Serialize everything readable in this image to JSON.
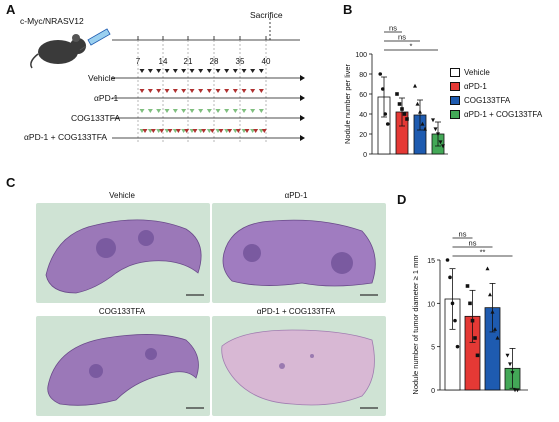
{
  "panels": {
    "A": {
      "letter": "A",
      "model_label": "c-Myc/NRASV12",
      "sacrifice_label": "Sacrifice",
      "days": [
        "7",
        "14",
        "21",
        "28",
        "35",
        "40"
      ],
      "groups": [
        "Vehicle",
        "αPD-1",
        "COG133TFA",
        "αPD-1 + COG133TFA"
      ],
      "marker_colors": {
        "vehicle": "#222222",
        "apd1": "#b03030",
        "cog": "#7fbf7f"
      }
    },
    "B": {
      "letter": "B"
    },
    "C": {
      "letter": "C",
      "titles": [
        "Vehicle",
        "αPD-1",
        "COG133TFA",
        "αPD-1 + COG133TFA"
      ]
    },
    "D": {
      "letter": "D"
    }
  },
  "legend": [
    {
      "label": "Vehicle",
      "color": "#ffffff"
    },
    {
      "label": "αPD-1",
      "color": "#e53935"
    },
    {
      "label": "COG133TFA",
      "color": "#1e5bb0"
    },
    {
      "label": "αPD-1 + COG133TFA",
      "color": "#43a857"
    }
  ],
  "chart_data": [
    {
      "type": "bar",
      "panel": "B",
      "categories": [
        "Vehicle",
        "αPD-1",
        "COG133TFA",
        "αPD-1 + COG133TFA"
      ],
      "values": [
        57,
        42,
        39,
        20
      ],
      "errors": [
        20,
        14,
        15,
        12
      ],
      "colors": [
        "#ffffff",
        "#e53935",
        "#1e5bb0",
        "#43a857"
      ],
      "points": [
        [
          80,
          65,
          40,
          30
        ],
        [
          60,
          50,
          45,
          40,
          35
        ],
        [
          68,
          50,
          42,
          30,
          25
        ],
        [
          34,
          25,
          20,
          12,
          8
        ]
      ],
      "ylabel": "Nodule number per liver",
      "ylim": [
        0,
        100
      ],
      "yticks": [
        0,
        20,
        40,
        60,
        80,
        100
      ],
      "brackets": [
        {
          "from": 0,
          "to": 1,
          "label": "ns"
        },
        {
          "from": 0,
          "to": 2,
          "label": "ns"
        },
        {
          "from": 0,
          "to": 3,
          "label": "*"
        }
      ]
    },
    {
      "type": "bar",
      "panel": "D",
      "categories": [
        "Vehicle",
        "αPD-1",
        "COG133TFA",
        "αPD-1 + COG133TFA"
      ],
      "values": [
        10.5,
        8.5,
        9.5,
        2.5
      ],
      "errors": [
        3.5,
        3.0,
        2.8,
        2.3
      ],
      "colors": [
        "#ffffff",
        "#e53935",
        "#1e5bb0",
        "#43a857"
      ],
      "points": [
        [
          15,
          13,
          10,
          8,
          5
        ],
        [
          12,
          10,
          8,
          6,
          4
        ],
        [
          14,
          11,
          9,
          7,
          6
        ],
        [
          4,
          3,
          2,
          0,
          0
        ]
      ],
      "ylabel": "Nodule number of tumor diameter ≥ 1 mm",
      "ylim": [
        0,
        15
      ],
      "yticks": [
        0,
        5,
        10,
        15
      ],
      "brackets": [
        {
          "from": 0,
          "to": 1,
          "label": "ns"
        },
        {
          "from": 0,
          "to": 2,
          "label": "ns"
        },
        {
          "from": 0,
          "to": 3,
          "label": "**"
        }
      ]
    }
  ]
}
